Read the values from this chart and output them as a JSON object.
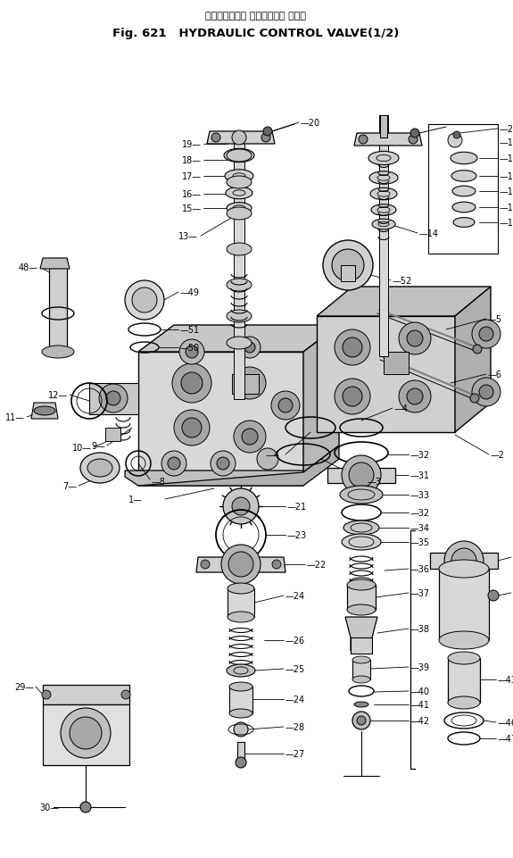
{
  "title_japanese": "ハイドロリック コントロール バルブ",
  "title_english": "Fig. 621   HYDRAULIC CONTROL VALVE(1/2)",
  "bg_color": "#ffffff",
  "lw_thin": 0.6,
  "lw_med": 0.9,
  "lw_thick": 1.2,
  "gray_light": "#e8e8e8",
  "gray_mid": "#c0c0c0",
  "gray_dark": "#888888",
  "gray_black": "#404040"
}
